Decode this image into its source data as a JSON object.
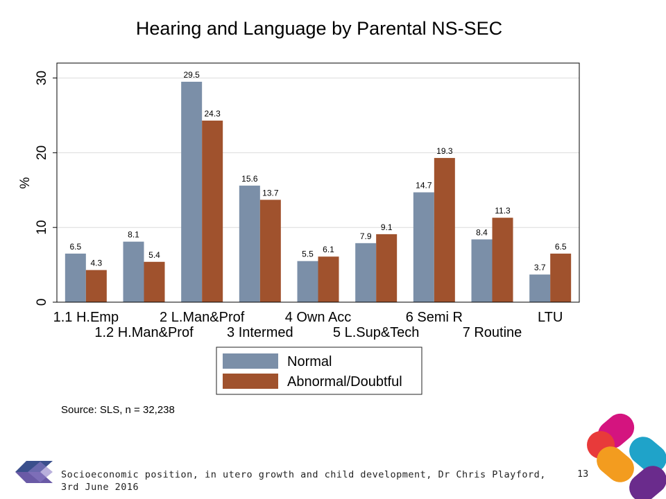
{
  "chart_data": {
    "type": "bar",
    "title": "Hearing and Language by Parental NS-SEC",
    "ylabel": "%",
    "ylim": [
      0,
      32
    ],
    "yticks": [
      0,
      10,
      20,
      30
    ],
    "grid": true,
    "categories": [
      "1.1 H.Emp",
      "1.2 H.Man&Prof",
      "2 L.Man&Prof",
      "3 Intermed",
      "4 Own Acc",
      "5 L.Sup&Tech",
      "6 Semi R",
      "7 Routine",
      "LTU"
    ],
    "series": [
      {
        "name": "Normal",
        "color": "#7b8fa8",
        "values": [
          6.5,
          8.1,
          29.5,
          15.6,
          5.5,
          7.9,
          14.7,
          8.4,
          3.7
        ]
      },
      {
        "name": "Abnormal/Doubtful",
        "color": "#a0522d",
        "values": [
          4.3,
          5.4,
          24.3,
          13.7,
          6.1,
          9.1,
          19.3,
          11.3,
          6.5
        ]
      }
    ],
    "data_labels": {
      "Normal": [
        "6.5",
        "8.1",
        "29.5",
        "15.6",
        "5.5",
        "7.9",
        "14.7",
        "8.4",
        "3.7"
      ],
      "Abnormal/Doubtful": [
        "4.3",
        "5.4",
        "24.3",
        "13.7",
        "6.1",
        "9.1",
        "19.3",
        "11.3",
        "6.5"
      ]
    },
    "legend_position": "bottom"
  },
  "source": "Source: SLS, n = 32,238",
  "footer": {
    "text": "Socioeconomic position, in utero growth and child development, Dr Chris Playford, 3rd June 2016",
    "page": "13"
  }
}
